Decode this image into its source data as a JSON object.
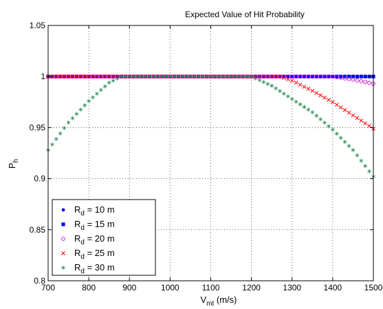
{
  "chart_data": {
    "type": "scatter",
    "title": "Expected Value of Hit Probability",
    "xlabel": {
      "main": "V",
      "sub": "mt",
      "suffix": " (m/s)"
    },
    "ylabel": {
      "main": "P",
      "sub": "h"
    },
    "xlim": [
      700,
      1500
    ],
    "ylim": [
      0.8,
      1.05
    ],
    "xticks": [
      "700",
      "800",
      "900",
      "1000",
      "1100",
      "1200",
      "1300",
      "1400",
      "1500"
    ],
    "yticks": [
      "0.8",
      "0.85",
      "0.9",
      "0.95",
      "1",
      "1.05"
    ],
    "grid": true,
    "legend_position": "lower-left",
    "x_start": 700,
    "x_step": 10,
    "x_count": 81,
    "series": [
      {
        "name": "R_d = 10 m",
        "legend": {
          "main": "R",
          "sub": "d",
          "suffix": " = 10 m"
        },
        "marker": "dot",
        "color": "#0000FF",
        "knots": [
          [
            700,
            1.0
          ],
          [
            1500,
            1.0
          ]
        ]
      },
      {
        "name": "R_d = 15 m",
        "legend": {
          "main": "R",
          "sub": "d",
          "suffix": " = 15 m"
        },
        "marker": "square",
        "color": "#0000FF",
        "knots": [
          [
            700,
            1.0
          ],
          [
            1500,
            1.0
          ]
        ]
      },
      {
        "name": "R_d = 20 m",
        "legend": {
          "main": "R",
          "sub": "d",
          "suffix": " = 20 m"
        },
        "marker": "circle",
        "color": "#CC00CC",
        "knots": [
          [
            700,
            1.0
          ],
          [
            1400,
            1.0
          ],
          [
            1450,
            0.997
          ],
          [
            1500,
            0.993
          ]
        ]
      },
      {
        "name": "R_d = 25 m",
        "legend": {
          "main": "R",
          "sub": "d",
          "suffix": " = 25 m"
        },
        "marker": "x",
        "color": "#FF0000",
        "knots": [
          [
            700,
            1.0
          ],
          [
            1270,
            1.0
          ],
          [
            1300,
            0.996
          ],
          [
            1350,
            0.986
          ],
          [
            1400,
            0.975
          ],
          [
            1450,
            0.962
          ],
          [
            1500,
            0.949
          ]
        ]
      },
      {
        "name": "R_d = 30 m",
        "legend": {
          "main": "R",
          "sub": "d",
          "suffix": " = 30 m"
        },
        "marker": "star",
        "color": "#2E8B57",
        "knots": [
          [
            700,
            0.928
          ],
          [
            750,
            0.955
          ],
          [
            800,
            0.976
          ],
          [
            850,
            0.994
          ],
          [
            880,
            1.0
          ],
          [
            1200,
            1.0
          ],
          [
            1250,
            0.991
          ],
          [
            1300,
            0.978
          ],
          [
            1350,
            0.965
          ],
          [
            1400,
            0.948
          ],
          [
            1450,
            0.928
          ],
          [
            1500,
            0.902
          ]
        ]
      }
    ]
  }
}
